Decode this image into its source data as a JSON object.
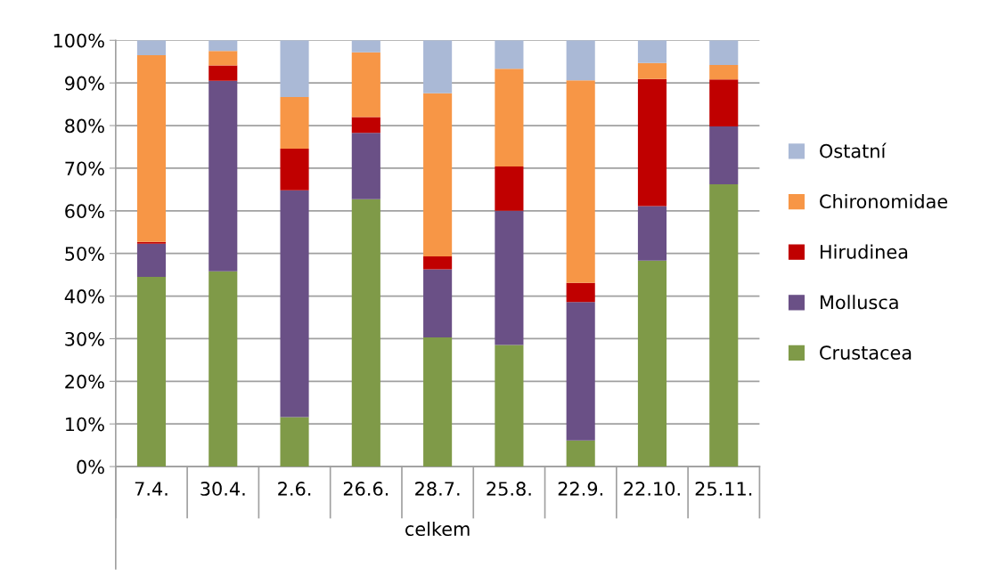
{
  "chart_data": {
    "type": "bar",
    "stacked": true,
    "xlabel": "celkem",
    "categories": [
      "7.4.",
      "30.4.",
      "2.6.",
      "26.6.",
      "28.7.",
      "25.8.",
      "22.9.",
      "22.10.",
      "25.11."
    ],
    "series": [
      {
        "name": "Crustacea",
        "color": "#7f9a48",
        "values": [
          44.5,
          45.8,
          11.6,
          62.7,
          30.3,
          28.5,
          6.1,
          48.3,
          66.2
        ]
      },
      {
        "name": "Mollusca",
        "color": "#6a5086",
        "values": [
          7.8,
          44.7,
          53.2,
          15.6,
          16.0,
          31.5,
          32.5,
          12.8,
          13.6
        ]
      },
      {
        "name": "Hirudinea",
        "color": "#c00000",
        "values": [
          0.4,
          3.6,
          9.8,
          3.7,
          3.0,
          10.4,
          4.5,
          29.8,
          11.0
        ]
      },
      {
        "name": "Chironomidae",
        "color": "#f79646",
        "values": [
          43.8,
          3.4,
          12.1,
          15.2,
          38.3,
          22.9,
          47.5,
          3.8,
          3.4
        ]
      },
      {
        "name": "Ostatní",
        "color": "#aab9d6",
        "values": [
          3.5,
          2.5,
          13.3,
          2.8,
          12.4,
          6.7,
          9.4,
          5.3,
          5.8
        ]
      }
    ],
    "ylim": [
      0,
      100
    ],
    "yticks": [
      {
        "value": 0,
        "label": "0%"
      },
      {
        "value": 10,
        "label": "10%"
      },
      {
        "value": 20,
        "label": "20%"
      },
      {
        "value": 30,
        "label": "30%"
      },
      {
        "value": 40,
        "label": "40%"
      },
      {
        "value": 50,
        "label": "50%"
      },
      {
        "value": 60,
        "label": "60%"
      },
      {
        "value": 70,
        "label": "70%"
      },
      {
        "value": 80,
        "label": "80%"
      },
      {
        "value": 90,
        "label": "90%"
      },
      {
        "value": 100,
        "label": "100%"
      }
    ],
    "grid": "y",
    "legend": "right"
  }
}
